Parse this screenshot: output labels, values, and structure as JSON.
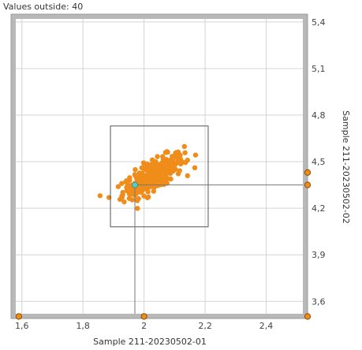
{
  "header": {
    "outside_label": "Values outside: 40"
  },
  "colors": {
    "frame": "#b8b8b8",
    "plot_bg": "#ffffff",
    "grid": "#d4d4d4",
    "point": "#f08c1a",
    "selected_point": "#50d0c8",
    "marker_fill": "#f08c1a",
    "marker_stroke": "#8a4a00",
    "box": "#555555",
    "crosshair": "#777777"
  },
  "chart_data": {
    "type": "scatter",
    "xlabel": "Sample 211-20230502-01",
    "ylabel": "Sample 211-20230502-02",
    "xlim": [
      1.58,
      2.52
    ],
    "ylim": [
      3.52,
      5.42
    ],
    "x_ticks": [
      "1,6",
      "1,8",
      "2",
      "2,2",
      "2,4"
    ],
    "x_tick_values": [
      1.6,
      1.8,
      2.0,
      2.2,
      2.4
    ],
    "y_ticks": [
      "3,6",
      "3,9",
      "4,2",
      "4,5",
      "4,8",
      "5,1",
      "5,4"
    ],
    "y_tick_values": [
      3.6,
      3.9,
      4.2,
      4.5,
      4.8,
      5.1,
      5.4
    ],
    "grid": true,
    "cluster": {
      "center": [
        2.03,
        4.41
      ],
      "spread": [
        0.05,
        0.07
      ],
      "correlation": 0.75,
      "count": 320
    },
    "selected_point": [
      1.97,
      4.35
    ],
    "box": {
      "x": [
        1.89,
        2.21
      ],
      "y": [
        4.08,
        4.73
      ]
    },
    "outside_markers_x": [
      1.59,
      2.0
    ],
    "outside_markers_y": [
      4.43,
      4.35
    ]
  }
}
